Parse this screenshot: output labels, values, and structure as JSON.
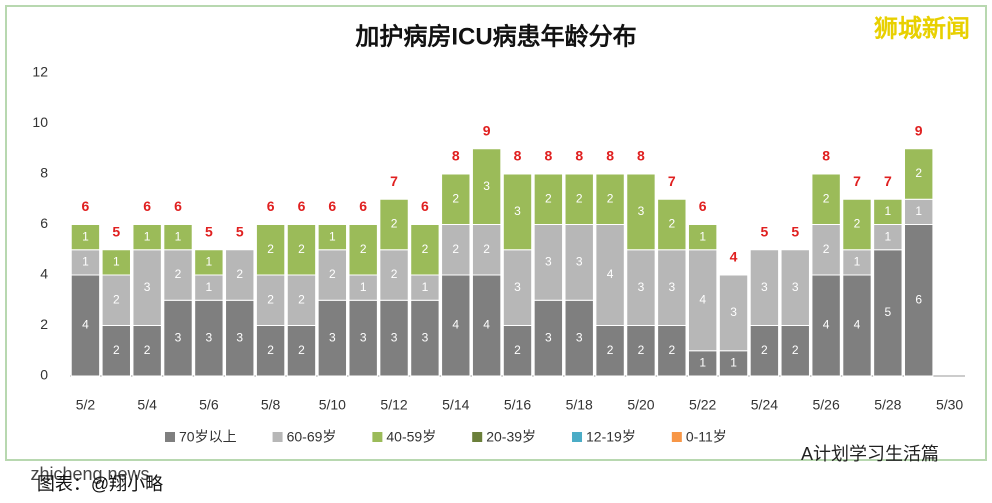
{
  "chart_data": {
    "type": "stacked_bar",
    "title": "加护病房ICU病患年龄分布",
    "categories": [
      "5/2",
      null,
      "5/4",
      null,
      "5/6",
      null,
      "5/8",
      null,
      "5/10",
      null,
      "5/12",
      null,
      "5/14",
      null,
      "5/16",
      null,
      "5/18",
      null,
      "5/20",
      null,
      "5/22",
      null,
      "5/24",
      null,
      "5/26",
      null,
      "5/28",
      null,
      "5/30"
    ],
    "series": [
      {
        "name": "70岁以上",
        "color": "#7f7f7f",
        "values": [
          4,
          2,
          2,
          3,
          3,
          3,
          2,
          2,
          3,
          3,
          3,
          3,
          4,
          4,
          2,
          3,
          3,
          2,
          2,
          2,
          1,
          1,
          2,
          2,
          4,
          4,
          5,
          6,
          null
        ]
      },
      {
        "name": "60-69岁",
        "color": "#b7b7b7",
        "values": [
          1,
          2,
          3,
          2,
          1,
          2,
          2,
          2,
          2,
          1,
          2,
          1,
          2,
          2,
          3,
          3,
          3,
          4,
          3,
          3,
          4,
          3,
          3,
          3,
          2,
          1,
          1,
          1,
          null
        ]
      },
      {
        "name": "40-59岁",
        "color": "#9bbb59",
        "values": [
          1,
          1,
          1,
          1,
          1,
          0,
          2,
          2,
          1,
          2,
          2,
          2,
          2,
          3,
          3,
          2,
          2,
          2,
          3,
          2,
          1,
          0,
          0,
          0,
          2,
          2,
          1,
          2,
          null
        ]
      },
      {
        "name": "20-39岁",
        "color": "#6b7f3a",
        "values": [
          0,
          0,
          0,
          0,
          0,
          0,
          0,
          0,
          0,
          0,
          0,
          0,
          0,
          0,
          0,
          0,
          0,
          0,
          0,
          0,
          0,
          0,
          0,
          0,
          0,
          0,
          0,
          0,
          null
        ]
      },
      {
        "name": "12-19岁",
        "color": "#4bacc6",
        "values": [
          0,
          0,
          0,
          0,
          0,
          0,
          0,
          0,
          0,
          0,
          0,
          0,
          0,
          0,
          0,
          0,
          0,
          0,
          0,
          0,
          0,
          0,
          0,
          0,
          0,
          0,
          0,
          0,
          null
        ]
      },
      {
        "name": "0-11岁",
        "color": "#f79646",
        "values": [
          0,
          0,
          0,
          0,
          0,
          0,
          0,
          0,
          0,
          0,
          0,
          0,
          0,
          0,
          0,
          0,
          0,
          0,
          0,
          0,
          0,
          0,
          0,
          0,
          0,
          0,
          0,
          0,
          null
        ]
      }
    ],
    "totals": [
      6,
      5,
      6,
      6,
      5,
      5,
      6,
      6,
      6,
      6,
      7,
      6,
      8,
      9,
      8,
      8,
      8,
      8,
      8,
      7,
      6,
      4,
      5,
      5,
      8,
      7,
      7,
      9,
      null
    ],
    "total_color": "#e02020",
    "ylim": [
      0,
      12
    ],
    "yticks": [
      0,
      2,
      4,
      6,
      8,
      10,
      12
    ],
    "grid": false
  },
  "watermarks": {
    "brand": "狮城新闻",
    "site": "zhicheng.news",
    "credit": "图表：@翔小略",
    "account": "A计划学习生活篇"
  }
}
